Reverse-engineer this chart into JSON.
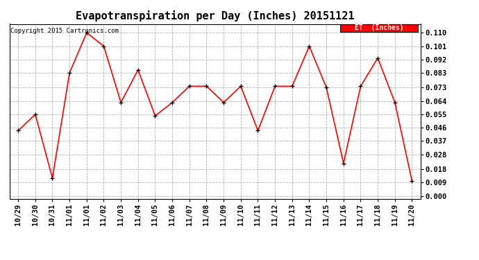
{
  "title": "Evapotranspiration per Day (Inches) 20151121",
  "copyright_text": "Copyright 2015 Cartronics.com",
  "legend_label": "ET  (Inches)",
  "x_labels": [
    "10/29",
    "10/30",
    "10/31",
    "11/01",
    "11/01",
    "11/02",
    "11/03",
    "11/04",
    "11/05",
    "11/06",
    "11/07",
    "11/08",
    "11/09",
    "11/10",
    "11/11",
    "11/12",
    "11/13",
    "11/14",
    "11/15",
    "11/16",
    "11/17",
    "11/18",
    "11/19",
    "11/20"
  ],
  "y_values": [
    0.044,
    0.055,
    0.012,
    0.083,
    0.11,
    0.101,
    0.063,
    0.085,
    0.054,
    0.063,
    0.074,
    0.074,
    0.063,
    0.074,
    0.044,
    0.074,
    0.074,
    0.101,
    0.073,
    0.022,
    0.074,
    0.093,
    0.063,
    0.01
  ],
  "y_ticks": [
    0.0,
    0.009,
    0.018,
    0.028,
    0.037,
    0.046,
    0.055,
    0.064,
    0.073,
    0.083,
    0.092,
    0.101,
    0.11
  ],
  "line_color": "#ff0000",
  "marker_color": "#000000",
  "background_color": "#ffffff",
  "grid_color": "#aaaaaa",
  "title_fontsize": 11,
  "tick_fontsize": 7.5,
  "copyright_fontsize": 6.5,
  "figsize": [
    6.9,
    3.75
  ],
  "dpi": 100,
  "ylim_min": -0.002,
  "ylim_max": 0.116
}
